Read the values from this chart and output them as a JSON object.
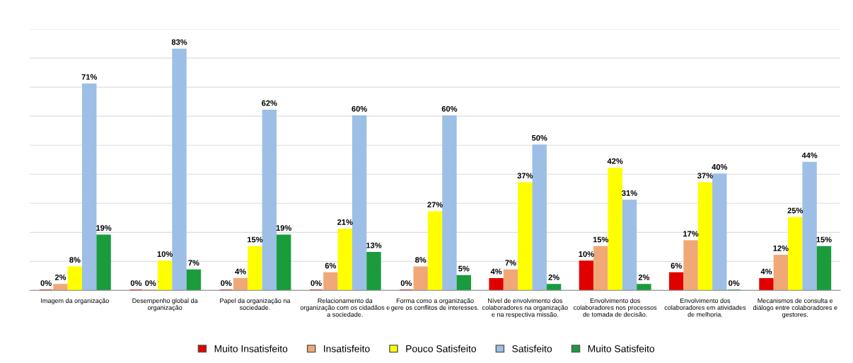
{
  "chart_data": {
    "type": "bar",
    "categories": [
      "Imagem da organização",
      "Desempenho global da\norganização",
      "Papel da organização na\nsociedade.",
      "Relacionamento da\norganização com os cidadãos e\na sociedade.",
      "Forma como a organização\ngere os conflitos de interesses.",
      "Nível de envolvimento dos\ncolaboradores na organização\ne na respectiva missão.",
      "Envolvimento dos\ncolaboradores nos processos\nde tomada de decisão.",
      "Envolvimento dos\ncolaboradores em atividades\nde melhoria.",
      "Mecanismos de consulta e\ndiálogo entre colaboradores e\ngestores."
    ],
    "series": [
      {
        "name": "Muito Insatisfeito",
        "color": "#e00000",
        "values": [
          0,
          0,
          0,
          0,
          0,
          4,
          10,
          6,
          4
        ],
        "value_labels": [
          "0%",
          "0%",
          "0%",
          "0%",
          "0%",
          "4%",
          "10%",
          "6%",
          "4%"
        ]
      },
      {
        "name": "Insatisfeito",
        "color": "#f0a878",
        "values": [
          2,
          0,
          4,
          6,
          8,
          7,
          15,
          17,
          12
        ],
        "value_labels": [
          "2%",
          "0%",
          "4%",
          "6%",
          "8%",
          "7%",
          "15%",
          "17%",
          "12%"
        ]
      },
      {
        "name": "Pouco Satisfeito",
        "color": "#ffff00",
        "values": [
          8,
          10,
          15,
          21,
          27,
          37,
          42,
          37,
          25
        ],
        "value_labels": [
          "8%",
          "10%",
          "15%",
          "21%",
          "27%",
          "37%",
          "42%",
          "37%",
          "25%"
        ]
      },
      {
        "name": "Satisfeito",
        "color": "#9dbfe6",
        "values": [
          71,
          83,
          62,
          60,
          60,
          50,
          31,
          40,
          44
        ],
        "value_labels": [
          "71%",
          "83%",
          "62%",
          "60%",
          "60%",
          "50%",
          "31%",
          "40%",
          "44%"
        ]
      },
      {
        "name": "Muito Satisfeito",
        "color": "#1a9c3c",
        "values": [
          19,
          7,
          19,
          13,
          5,
          2,
          2,
          0,
          15
        ],
        "value_labels": [
          "19%",
          "7%",
          "19%",
          "13%",
          "5%",
          "2%",
          "2%",
          "0%",
          "15%"
        ]
      }
    ],
    "ylim": [
      0,
      90
    ],
    "yticks": [
      {
        "value": 0,
        "label": null
      },
      {
        "value": 10,
        "label": null
      },
      {
        "value": 20,
        "label": null
      },
      {
        "value": 30,
        "label": null
      },
      {
        "value": 40,
        "label": null
      },
      {
        "value": 50,
        "label": null
      },
      {
        "value": 60,
        "label": null
      },
      {
        "value": 70,
        "label": null
      },
      {
        "value": 80,
        "label": null
      },
      {
        "value": 90,
        "label": null
      }
    ],
    "grid": "y",
    "legend": "bottom"
  }
}
